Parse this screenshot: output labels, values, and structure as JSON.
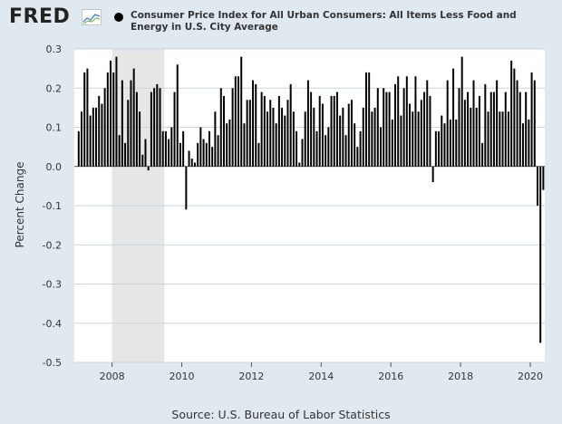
{
  "header": {
    "logo_text": "FRED",
    "legend_label": "Consumer Price Index for All Urban Consumers: All Items Less Food and Energy in U.S. City Average"
  },
  "source": "Source: U.S. Bureau of Labor Statistics",
  "colors": {
    "bar": "#000000",
    "recession": "#e6e6e6",
    "plot_bg": "#ffffff",
    "grid": "#c9d4de",
    "page_bg": "#e1e9f0"
  },
  "chart_data": {
    "type": "bar",
    "title": "",
    "xlabel": "",
    "ylabel": "Percent Change",
    "ylim": [
      -0.5,
      0.3
    ],
    "xlim": [
      "2006-12",
      "2020-06"
    ],
    "yticks": [
      0.3,
      0.2,
      0.1,
      0.0,
      -0.1,
      -0.2,
      -0.3,
      -0.4,
      -0.5
    ],
    "ytick_labels": [
      "0.3",
      "0.2",
      "0.1",
      "0.0",
      "-0.1",
      "-0.2",
      "-0.3",
      "-0.4",
      "-0.5"
    ],
    "xticks": [
      "2008",
      "2010",
      "2012",
      "2014",
      "2016",
      "2018",
      "2020"
    ],
    "grid": true,
    "recession_shading": {
      "start": "2008-01",
      "end": "2009-06"
    },
    "series": [
      {
        "start": "2007-01",
        "frequency": "monthly",
        "values": [
          0.09,
          0.14,
          0.24,
          0.25,
          0.13,
          0.15,
          0.15,
          0.18,
          0.16,
          0.2,
          0.24,
          0.27,
          0.24,
          0.28,
          0.08,
          0.22,
          0.06,
          0.17,
          0.22,
          0.25,
          0.19,
          0.14,
          0.03,
          0.07,
          -0.01,
          0.19,
          0.2,
          0.21,
          0.2,
          0.09,
          0.09,
          0.07,
          0.1,
          0.19,
          0.26,
          0.06,
          0.09,
          -0.11,
          0.04,
          0.02,
          0.01,
          0.06,
          0.1,
          0.07,
          0.06,
          0.09,
          0.05,
          0.14,
          0.08,
          0.2,
          0.18,
          0.11,
          0.12,
          0.2,
          0.23,
          0.23,
          0.28,
          0.11,
          0.17,
          0.17,
          0.22,
          0.21,
          0.06,
          0.19,
          0.18,
          0.14,
          0.17,
          0.15,
          0.11,
          0.18,
          0.15,
          0.13,
          0.17,
          0.21,
          0.14,
          0.09,
          0.01,
          0.07,
          0.14,
          0.22,
          0.19,
          0.15,
          0.09,
          0.18,
          0.16,
          0.08,
          0.1,
          0.18,
          0.18,
          0.19,
          0.13,
          0.15,
          0.08,
          0.16,
          0.17,
          0.11,
          0.05,
          0.09,
          0.15,
          0.24,
          0.24,
          0.14,
          0.15,
          0.2,
          0.1,
          0.2,
          0.19,
          0.19,
          0.12,
          0.21,
          0.23,
          0.13,
          0.2,
          0.23,
          0.16,
          0.14,
          0.23,
          0.14,
          0.17,
          0.19,
          0.22,
          0.18,
          -0.04,
          0.09,
          0.09,
          0.13,
          0.11,
          0.22,
          0.12,
          0.25,
          0.12,
          0.2,
          0.28,
          0.17,
          0.19,
          0.15,
          0.22,
          0.15,
          0.18,
          0.06,
          0.21,
          0.14,
          0.19,
          0.19,
          0.22,
          0.14,
          0.14,
          0.19,
          0.14,
          0.27,
          0.25,
          0.22,
          0.19,
          0.11,
          0.19,
          0.12,
          0.24,
          0.22,
          -0.1,
          -0.45,
          -0.06
        ]
      }
    ]
  }
}
